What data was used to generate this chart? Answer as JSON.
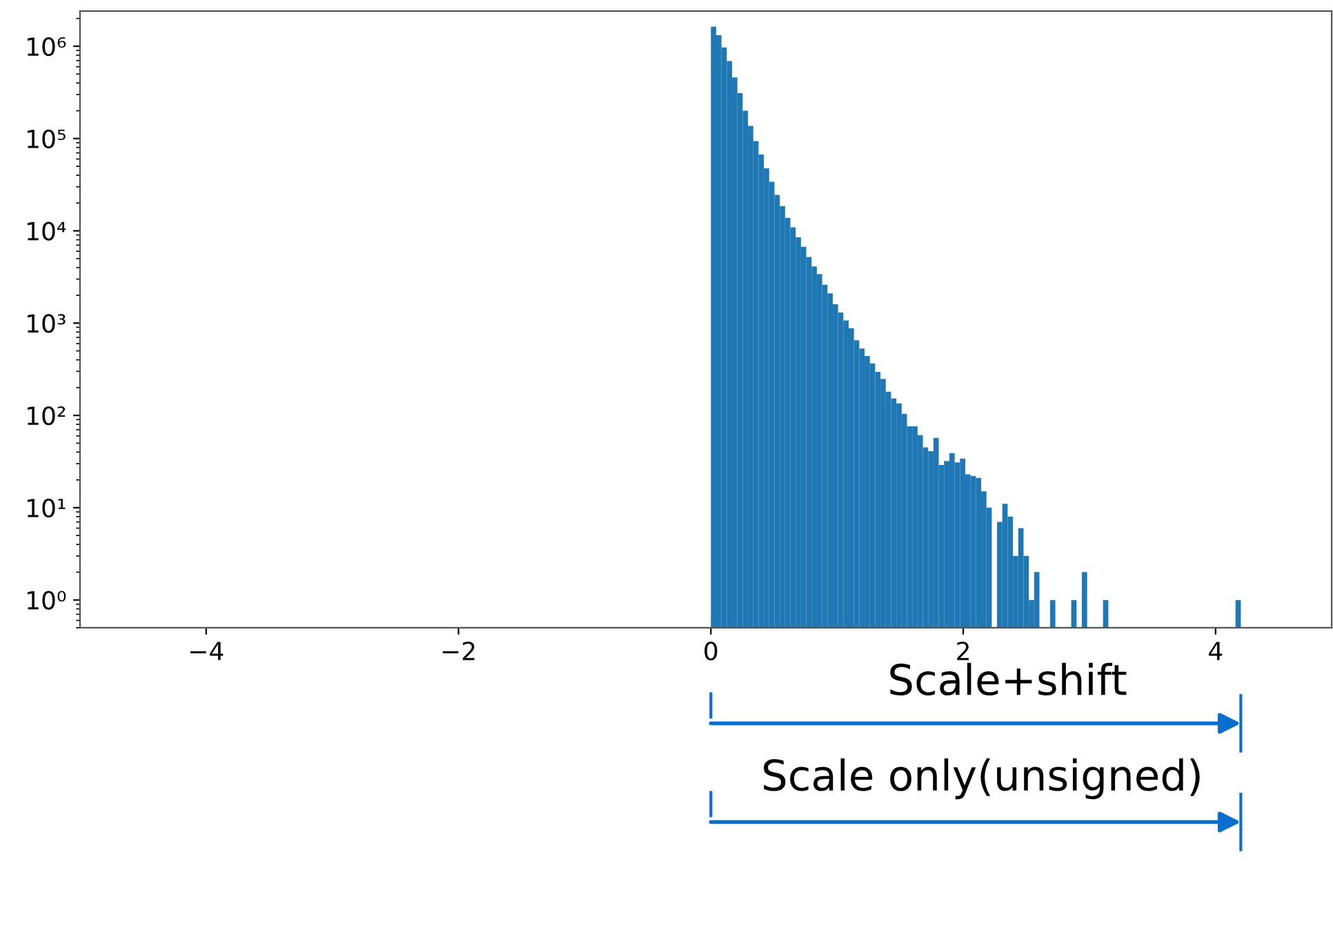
{
  "chart_data": {
    "type": "histogram",
    "color": "#1f77b4",
    "log": "y",
    "grid": false,
    "legend": false,
    "bins": [
      0,
      0.042,
      0.084,
      0.126,
      0.168,
      0.21,
      0.252,
      0.294,
      0.336,
      0.378,
      0.42,
      0.462,
      0.504,
      0.546,
      0.588,
      0.63,
      0.672,
      0.714,
      0.756,
      0.798,
      0.84,
      0.882,
      0.924,
      0.966,
      1.008,
      1.05,
      1.092,
      1.134,
      1.176,
      1.218,
      1.26,
      1.302,
      1.344,
      1.386,
      1.428,
      1.47,
      1.512,
      1.554,
      1.596,
      1.638,
      1.68,
      1.722,
      1.764,
      1.806,
      1.848,
      1.89,
      1.932,
      1.974,
      2.016,
      2.058,
      2.1,
      2.142,
      2.184,
      2.226,
      2.268,
      2.31,
      2.352,
      2.394,
      2.436,
      2.478,
      2.52,
      2.562,
      2.604,
      2.646,
      2.688,
      2.73,
      2.772,
      2.814,
      2.856,
      2.898,
      2.94,
      2.982,
      3.024,
      3.066,
      3.108,
      3.15,
      3.192,
      3.234,
      3.276,
      3.318,
      3.36,
      3.402,
      3.444,
      3.486,
      3.528,
      3.57,
      3.612,
      3.654,
      3.696,
      3.738,
      3.78,
      3.822,
      3.864,
      3.906,
      3.948,
      3.99,
      4.032,
      4.074,
      4.116,
      4.158,
      4.2
    ],
    "values": [
      1630000,
      1320000,
      970000,
      690000,
      460000,
      310000,
      200000,
      137000,
      94000,
      67000,
      47500,
      34000,
      24500,
      18500,
      13800,
      10900,
      8500,
      6700,
      5200,
      4100,
      3400,
      2600,
      2100,
      1600,
      1300,
      1070,
      880,
      650,
      530,
      440,
      366,
      296,
      248,
      181,
      153,
      135,
      104,
      76,
      76,
      61,
      45,
      41,
      57,
      29,
      32,
      39,
      31,
      34,
      23,
      22,
      21,
      15,
      10,
      null,
      7,
      11,
      8,
      3,
      6,
      3,
      1,
      2,
      null,
      null,
      1,
      null,
      null,
      null,
      1,
      null,
      2,
      null,
      null,
      null,
      1,
      null,
      null,
      null,
      null,
      null,
      null,
      null,
      null,
      null,
      null,
      null,
      null,
      null,
      null,
      null,
      null,
      null,
      null,
      null,
      null,
      null,
      null,
      null,
      null,
      1
    ],
    "xlim": [
      -5,
      4.92
    ],
    "xticks": [
      {
        "value": -4,
        "label": "−4"
      },
      {
        "value": -2,
        "label": "−2"
      },
      0,
      2,
      4
    ],
    "ylim": [
      0.5,
      2400000
    ],
    "yticks": [
      {
        "value": 1,
        "label": "10⁰"
      },
      {
        "value": 10,
        "label": "10¹"
      },
      {
        "value": 100,
        "label": "10²"
      },
      {
        "value": 1000,
        "label": "10³"
      },
      {
        "value": 10000,
        "label": "10⁴"
      },
      {
        "value": 100000,
        "label": "10⁵"
      },
      {
        "value": 1000000,
        "label": "10⁶"
      }
    ],
    "annotations": [
      "Scale+shift",
      "Scale only(unsigned)"
    ]
  }
}
